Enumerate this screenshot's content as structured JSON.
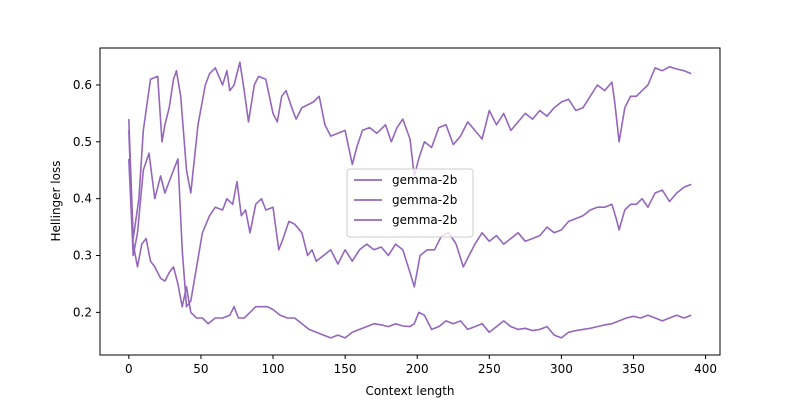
{
  "chart_data": {
    "type": "line",
    "xlabel": "Context length",
    "ylabel": "Hellinger loss",
    "xlim": [
      -20,
      410
    ],
    "ylim": [
      0.125,
      0.665
    ],
    "xticks": [
      0,
      50,
      100,
      150,
      200,
      250,
      300,
      350,
      400
    ],
    "yticks": [
      0.2,
      0.3,
      0.4,
      0.5,
      0.6
    ],
    "ytick_labels": [
      "0.2",
      "0.3",
      "0.4",
      "0.5",
      "0.6"
    ],
    "grid": false,
    "legend_placement": "center",
    "line_color": "#9467bd",
    "series": [
      {
        "name": "gemma-2b",
        "x": [
          0,
          3,
          7,
          10,
          15,
          20,
          23,
          25,
          28,
          31,
          33,
          36,
          40,
          43,
          48,
          53,
          56,
          60,
          65,
          68,
          70,
          73,
          77,
          80,
          83,
          87,
          90,
          95,
          100,
          103,
          106,
          109,
          113,
          116,
          120,
          124,
          128,
          132,
          136,
          140,
          145,
          150,
          155,
          158,
          162,
          167,
          172,
          178,
          182,
          186,
          190,
          195,
          198,
          201,
          205,
          210,
          215,
          220,
          225,
          230,
          235,
          240,
          245,
          250,
          255,
          260,
          265,
          270,
          275,
          280,
          285,
          290,
          295,
          300,
          305,
          310,
          315,
          320,
          325,
          330,
          335,
          337,
          340,
          344,
          348,
          352,
          356,
          360,
          365,
          370,
          375,
          380,
          385,
          390
        ],
        "values": [
          0.54,
          0.33,
          0.4,
          0.52,
          0.61,
          0.615,
          0.5,
          0.53,
          0.56,
          0.61,
          0.625,
          0.58,
          0.45,
          0.41,
          0.53,
          0.6,
          0.62,
          0.63,
          0.6,
          0.625,
          0.59,
          0.6,
          0.64,
          0.59,
          0.535,
          0.6,
          0.615,
          0.61,
          0.55,
          0.535,
          0.58,
          0.59,
          0.56,
          0.54,
          0.56,
          0.565,
          0.57,
          0.58,
          0.53,
          0.51,
          0.515,
          0.52,
          0.46,
          0.49,
          0.52,
          0.525,
          0.515,
          0.53,
          0.5,
          0.525,
          0.54,
          0.505,
          0.44,
          0.47,
          0.5,
          0.49,
          0.525,
          0.53,
          0.495,
          0.51,
          0.535,
          0.52,
          0.505,
          0.555,
          0.53,
          0.55,
          0.52,
          0.535,
          0.55,
          0.54,
          0.555,
          0.545,
          0.56,
          0.57,
          0.575,
          0.555,
          0.56,
          0.58,
          0.6,
          0.59,
          0.605,
          0.57,
          0.5,
          0.56,
          0.58,
          0.58,
          0.59,
          0.6,
          0.63,
          0.625,
          0.632,
          0.628,
          0.625,
          0.62
        ]
      },
      {
        "name": "gemma-2b",
        "x": [
          0,
          3,
          6,
          10,
          14,
          18,
          22,
          25,
          28,
          31,
          34,
          37,
          40,
          43,
          47,
          51,
          56,
          60,
          65,
          68,
          72,
          75,
          78,
          81,
          84,
          88,
          92,
          95,
          100,
          104,
          107,
          111,
          115,
          120,
          124,
          127,
          130,
          135,
          140,
          145,
          150,
          155,
          160,
          165,
          170,
          175,
          180,
          185,
          190,
          195,
          198,
          202,
          207,
          212,
          217,
          222,
          227,
          232,
          236,
          240,
          245,
          250,
          255,
          260,
          265,
          270,
          275,
          280,
          285,
          290,
          295,
          300,
          305,
          310,
          315,
          320,
          325,
          330,
          335,
          338,
          340,
          344,
          348,
          352,
          356,
          360,
          365,
          370,
          375,
          380,
          385,
          390
        ],
        "values": [
          0.47,
          0.3,
          0.34,
          0.45,
          0.48,
          0.4,
          0.44,
          0.41,
          0.43,
          0.45,
          0.47,
          0.31,
          0.21,
          0.22,
          0.28,
          0.34,
          0.37,
          0.385,
          0.38,
          0.4,
          0.39,
          0.43,
          0.37,
          0.38,
          0.34,
          0.39,
          0.4,
          0.38,
          0.385,
          0.31,
          0.33,
          0.36,
          0.355,
          0.34,
          0.3,
          0.31,
          0.29,
          0.3,
          0.31,
          0.285,
          0.31,
          0.29,
          0.31,
          0.32,
          0.31,
          0.315,
          0.3,
          0.32,
          0.31,
          0.27,
          0.245,
          0.3,
          0.31,
          0.31,
          0.335,
          0.34,
          0.32,
          0.28,
          0.3,
          0.32,
          0.34,
          0.325,
          0.335,
          0.32,
          0.33,
          0.34,
          0.325,
          0.33,
          0.335,
          0.35,
          0.34,
          0.345,
          0.36,
          0.365,
          0.37,
          0.38,
          0.385,
          0.385,
          0.39,
          0.365,
          0.345,
          0.38,
          0.39,
          0.39,
          0.4,
          0.385,
          0.41,
          0.415,
          0.395,
          0.41,
          0.42,
          0.425
        ]
      },
      {
        "name": "gemma-2b",
        "x": [
          0,
          3,
          6,
          9,
          12,
          15,
          18,
          22,
          25,
          28,
          31,
          34,
          37,
          40,
          43,
          47,
          51,
          55,
          60,
          65,
          70,
          73,
          76,
          80,
          84,
          88,
          92,
          96,
          100,
          105,
          110,
          115,
          120,
          125,
          130,
          135,
          140,
          145,
          150,
          155,
          160,
          165,
          170,
          175,
          180,
          185,
          190,
          195,
          198,
          201,
          205,
          210,
          215,
          220,
          225,
          230,
          235,
          240,
          245,
          250,
          255,
          260,
          265,
          270,
          275,
          280,
          285,
          290,
          295,
          300,
          305,
          310,
          315,
          320,
          325,
          330,
          335,
          340,
          345,
          350,
          355,
          360,
          365,
          370,
          375,
          380,
          385,
          390
        ],
        "values": [
          0.52,
          0.32,
          0.28,
          0.32,
          0.33,
          0.29,
          0.28,
          0.26,
          0.255,
          0.27,
          0.28,
          0.25,
          0.21,
          0.245,
          0.2,
          0.19,
          0.19,
          0.18,
          0.19,
          0.19,
          0.195,
          0.21,
          0.19,
          0.19,
          0.2,
          0.21,
          0.21,
          0.21,
          0.205,
          0.195,
          0.19,
          0.19,
          0.18,
          0.17,
          0.165,
          0.16,
          0.155,
          0.16,
          0.155,
          0.165,
          0.17,
          0.175,
          0.18,
          0.178,
          0.175,
          0.18,
          0.176,
          0.175,
          0.18,
          0.2,
          0.195,
          0.17,
          0.175,
          0.185,
          0.18,
          0.185,
          0.17,
          0.175,
          0.18,
          0.165,
          0.175,
          0.185,
          0.175,
          0.17,
          0.172,
          0.168,
          0.17,
          0.175,
          0.16,
          0.155,
          0.165,
          0.168,
          0.17,
          0.172,
          0.175,
          0.178,
          0.18,
          0.185,
          0.19,
          0.193,
          0.19,
          0.195,
          0.19,
          0.185,
          0.19,
          0.195,
          0.19,
          0.195
        ]
      }
    ]
  }
}
